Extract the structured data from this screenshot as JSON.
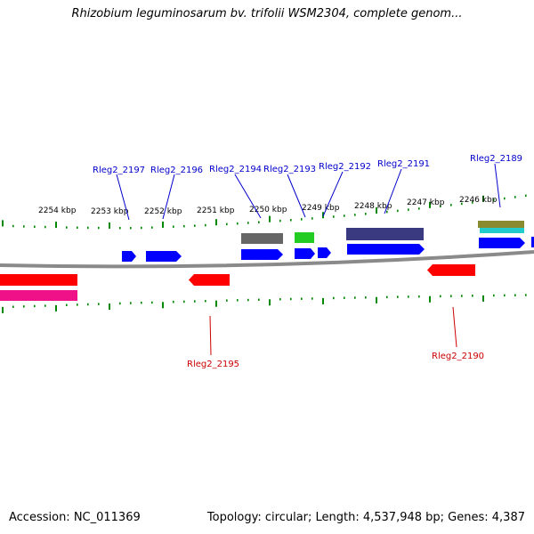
{
  "title": "Rhizobium leguminosarum bv. trifolii WSM2304, complete genom...",
  "footer": {
    "accession": "Accession: NC_011369",
    "stats": "Topology: circular; Length: 4,537,948 bp; Genes: 4,387"
  },
  "kbp_ticks": [
    {
      "label": "2254 kbp"
    },
    {
      "label": "2253 kbp"
    },
    {
      "label": "2252 kbp"
    },
    {
      "label": "2251 kbp"
    },
    {
      "label": "2250 kbp"
    },
    {
      "label": "2249 kbp"
    },
    {
      "label": "2248 kbp"
    },
    {
      "label": "2247 kbp"
    },
    {
      "label": "2246 kbp"
    }
  ],
  "gene_labels": [
    {
      "label": "Rleg2_2197",
      "strand": "forward"
    },
    {
      "label": "Rleg2_2196",
      "strand": "forward"
    },
    {
      "label": "Rleg2_2194",
      "strand": "forward"
    },
    {
      "label": "Rleg2_2193",
      "strand": "forward"
    },
    {
      "label": "Rleg2_2192",
      "strand": "forward"
    },
    {
      "label": "Rleg2_2191",
      "strand": "forward"
    },
    {
      "label": "Rleg2_2189",
      "strand": "forward"
    },
    {
      "label": "Rleg2_2195",
      "strand": "reverse"
    },
    {
      "label": "Rleg2_2190",
      "strand": "reverse"
    }
  ],
  "colors": {
    "forward_gene": "#0000ff",
    "reverse_gene": "#ff0000",
    "reverse_rna": "#ee1188",
    "forward_label": "#0000cc",
    "reverse_label": "#cc0000",
    "backbone": "#808080",
    "tick": "#008800",
    "cog_gray": "#666666",
    "cog_green": "#22cc22",
    "cog_indigo": "#3a3a80",
    "cog_olive": "#8a8a30",
    "cog_cyan": "#22cccc"
  }
}
